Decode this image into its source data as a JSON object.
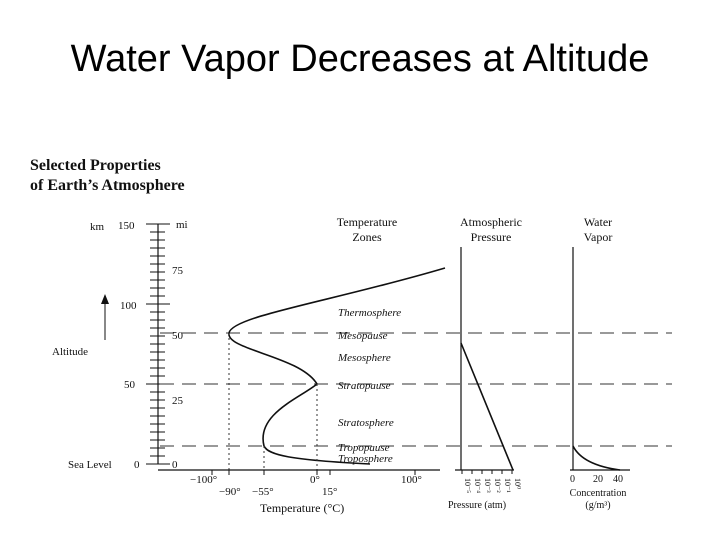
{
  "slide_title": "Water Vapor Decreases at Altitude",
  "figure": {
    "heading_line1": "Selected Properties",
    "heading_line2": "of Earth’s Atmosphere",
    "altitude_axis": {
      "km_label": "km",
      "mi_label": "mi",
      "side_label": "Altitude",
      "km_ticks": [
        "150",
        "100",
        "50",
        "0"
      ],
      "mi_ticks": [
        "75",
        "50",
        "25",
        "0"
      ],
      "sea_level": "Sea Level"
    },
    "temperature_zones": {
      "header_line1": "Temperature",
      "header_line2": "Zones",
      "zones": [
        "Thermosphere",
        "Mesopause",
        "Mesosphere",
        "Stratopause",
        "Stratosphere",
        "Tropopause",
        "Troposphere"
      ],
      "axis_ticks_top": [
        "−100°",
        "0°",
        "100°"
      ],
      "axis_ticks_bottom": [
        "−90°",
        "−55°",
        "15°"
      ],
      "axis_title": "Temperature (°C)"
    },
    "pressure": {
      "header_line1": "Atmospheric",
      "header_line2": "Pressure",
      "tick_labels": [
        "10⁻⁵",
        "10⁻⁴",
        "10⁻³",
        "10⁻²",
        "10⁻¹",
        "10⁰"
      ],
      "axis_title": "Pressure (atm)"
    },
    "water_vapor": {
      "header_line1": "Water",
      "header_line2": "Vapor",
      "tick_labels": [
        "0",
        "20",
        "40"
      ],
      "axis_title_line1": "Concentration",
      "axis_title_line2": "(g/m³)"
    }
  }
}
